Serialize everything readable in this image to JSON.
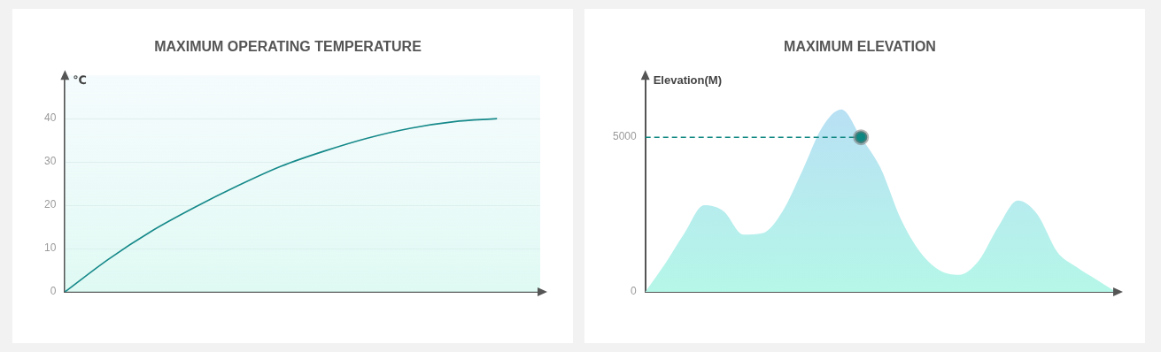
{
  "chart_data": [
    {
      "type": "line",
      "title": "MAXIMUM OPERATING TEMPERATURE",
      "y_label": "℃",
      "categories": [
        null,
        null,
        null,
        null,
        null,
        null,
        null,
        null,
        null,
        null,
        null,
        null
      ],
      "values": [
        0,
        7.5,
        14,
        19.5,
        24.5,
        29,
        32.5,
        35.5,
        37.8,
        39.3,
        40,
        null
      ],
      "color": "#16898a",
      "ylim": [
        0,
        50
      ],
      "yticks": [
        0,
        10,
        20,
        30,
        40
      ],
      "grid": true,
      "tick_labels": "y"
    },
    {
      "type": "area",
      "title": "MAXIMUM ELEVATION",
      "y_label": "Elevation(M)",
      "categories": [
        null,
        null,
        null,
        null,
        null,
        null,
        null,
        null,
        null,
        null,
        null,
        null,
        null,
        null,
        null,
        null,
        null,
        null,
        null,
        null,
        null,
        null,
        null,
        null,
        null
      ],
      "values": [
        0,
        900,
        1900,
        2800,
        2600,
        1850,
        1900,
        2600,
        3900,
        5300,
        5900,
        5000,
        4000,
        2400,
        1300,
        700,
        550,
        1000,
        2100,
        2950,
        2500,
        1300,
        800,
        400,
        0
      ],
      "color": "#b9dcf6",
      "ylim": [
        0,
        7000
      ],
      "yticks": [
        0,
        5000
      ],
      "grid": false,
      "tick_labels": "y",
      "highlight": {
        "category_index": 11,
        "value": 5000,
        "color": "#0f8782",
        "line_style": "dashed"
      }
    }
  ]
}
